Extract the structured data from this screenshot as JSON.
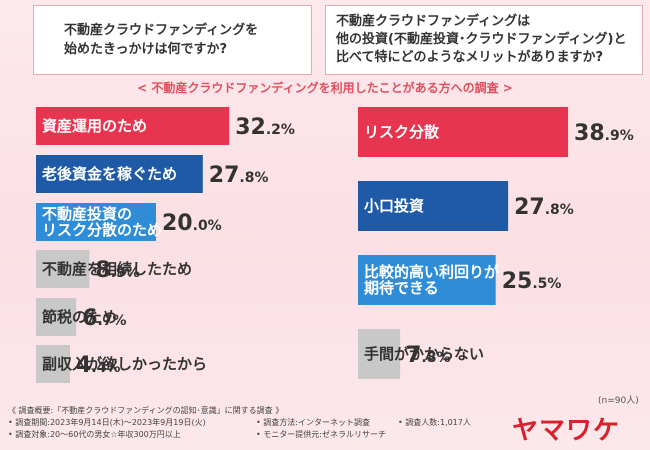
{
  "questions": {
    "left": "不動産クラウドファンディングを\n始めたきっかけは何ですか?",
    "right": "不動産クラウドファンディングは\n他の投資(不動産投資･クラウドファンディング)と\n比べて特にどのようなメリットがありますか?"
  },
  "subtitle": "< 不動産クラウドファンディングを利用したことがある方への調査 >",
  "chart_data": [
    {
      "type": "bar",
      "orientation": "horizontal",
      "categories": [
        "資産運用のため",
        "老後資金を稼ぐため",
        "不動産投資の\nリスク分散のため",
        "不動産を相続したため",
        "節税のため",
        "副収入が欲しかったから"
      ],
      "values": [
        32.2,
        27.8,
        20.0,
        8.9,
        6.7,
        4.4
      ],
      "value_labels": [
        "32.2%",
        "27.8%",
        "20.0%",
        "8.9%",
        "6.7%",
        "4.4%"
      ],
      "colors": [
        "#e8354f",
        "#1f5aa6",
        "#2f8dd8",
        "#c8c8c8",
        "#c8c8c8",
        "#c8c8c8"
      ],
      "label_colors": [
        "#ffffff",
        "#ffffff",
        "#ffffff",
        "#333333",
        "#333333",
        "#333333"
      ]
    },
    {
      "type": "bar",
      "orientation": "horizontal",
      "categories": [
        "リスク分散",
        "小口投資",
        "比較的高い利回りが\n期待できる",
        "手間がかからない"
      ],
      "values": [
        38.9,
        27.8,
        25.5,
        7.8
      ],
      "value_labels": [
        "38.9%",
        "27.8%",
        "25.5%",
        "7.8%"
      ],
      "colors": [
        "#e8354f",
        "#1f5aa6",
        "#2f8dd8",
        "#c8c8c8"
      ],
      "label_colors": [
        "#ffffff",
        "#ffffff",
        "#ffffff",
        "#333333"
      ]
    }
  ],
  "sample_note": "(n=90人)",
  "footer": {
    "title": "《 調査概要:「不動産クラウドファンディングの認知･意識」に関する調査 》",
    "period": "• 調査期間:2023年9月14日(木)〜2023年9月19日(火)",
    "method": "• 調査方法:インターネット調査",
    "count": "• 調査人数:1,017人",
    "target": "• 調査対象:20〜60代の男女☆年収300万円以上",
    "monitor": "• モニター提供元:ゼネラルリサーチ"
  },
  "logo": "ヤマワケ"
}
